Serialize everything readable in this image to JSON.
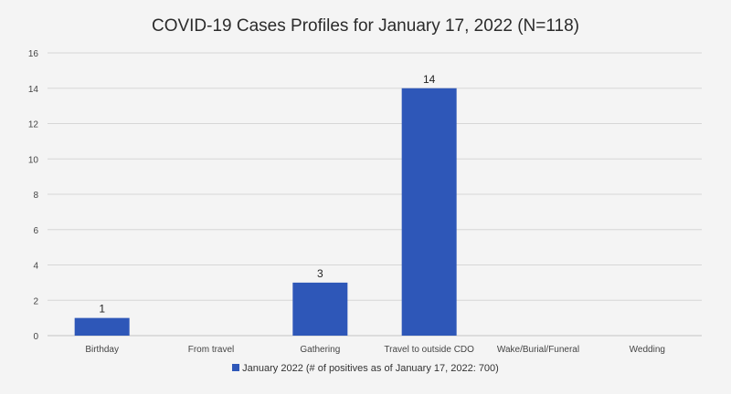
{
  "chart_data": {
    "type": "bar",
    "title": "COVID-19 Cases Profiles for January 17, 2022 (N=118)",
    "xlabel": "",
    "ylabel": "",
    "categories": [
      "Birthday",
      "From travel",
      "Gathering",
      "Travel to outside CDO",
      "Wake/Burial/Funeral",
      "Wedding"
    ],
    "series": [
      {
        "name": "January 2022 (# of positives as of January 17, 2022: 700)",
        "values": [
          1,
          0,
          3,
          14,
          0,
          0
        ],
        "labels": [
          "1",
          "",
          "3",
          "14",
          "",
          ""
        ]
      }
    ],
    "ylim": [
      0,
      16
    ],
    "yticks": [
      0,
      2,
      4,
      6,
      8,
      10,
      12,
      14,
      16
    ],
    "grid": true,
    "legend_position": "bottom",
    "colors": {
      "bar": "#2e57b8",
      "grid": "#d6d6d6",
      "background": "#f4f4f4"
    }
  }
}
